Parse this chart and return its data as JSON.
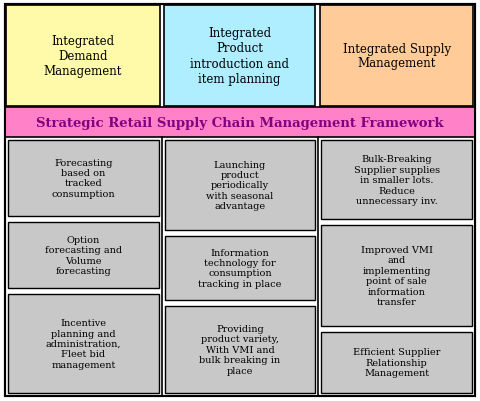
{
  "title": "Strategic Retail Supply Chain Management Framework",
  "title_bg": "#FF82C8",
  "title_color": "#800080",
  "title_fontsize": 9.5,
  "headers": [
    {
      "text": "Integrated\nDemand\nManagement",
      "bg": "#FFFAAA",
      "color": "#000000"
    },
    {
      "text": "Integrated\nProduct\nintroduction and\nitem planning",
      "bg": "#AEEEFF",
      "color": "#000000"
    },
    {
      "text": "Integrated Supply\nManagement",
      "bg": "#FFCC99",
      "color": "#000000"
    }
  ],
  "col1_cells": [
    "Forecasting\nbased on\ntracked\nconsumption",
    "Option\nforecasting and\nVolume\nforecasting",
    "Incentive\nplanning and\nadministration,\nFleet bid\nmanagement"
  ],
  "col2_cells": [
    "Launching\nproduct\nperiodically\nwith seasonal\nadvantage",
    "Information\ntechnology for\nconsumption\ntracking in place",
    "Providing\nproduct variety,\nWith VMI and\nbulk breaking in\nplace"
  ],
  "col3_cells": [
    "Bulk-Breaking\nSupplier supplies\nin smaller lots.\nReduce\nunnecessary inv.",
    "Improved VMI\nand\nimplementing\npoint of sale\ninformation\ntransfer",
    "Efficient Supplier\nRelationship\nManagement"
  ],
  "cell_bg": "#C8C8C8",
  "cell_color": "#000000",
  "border_color": "#000000",
  "bg_color": "#FFFFFF",
  "cell_fontsize": 7,
  "header_fontsize": 8.5,
  "fig_width": 4.8,
  "fig_height": 4.02,
  "dpi": 100
}
